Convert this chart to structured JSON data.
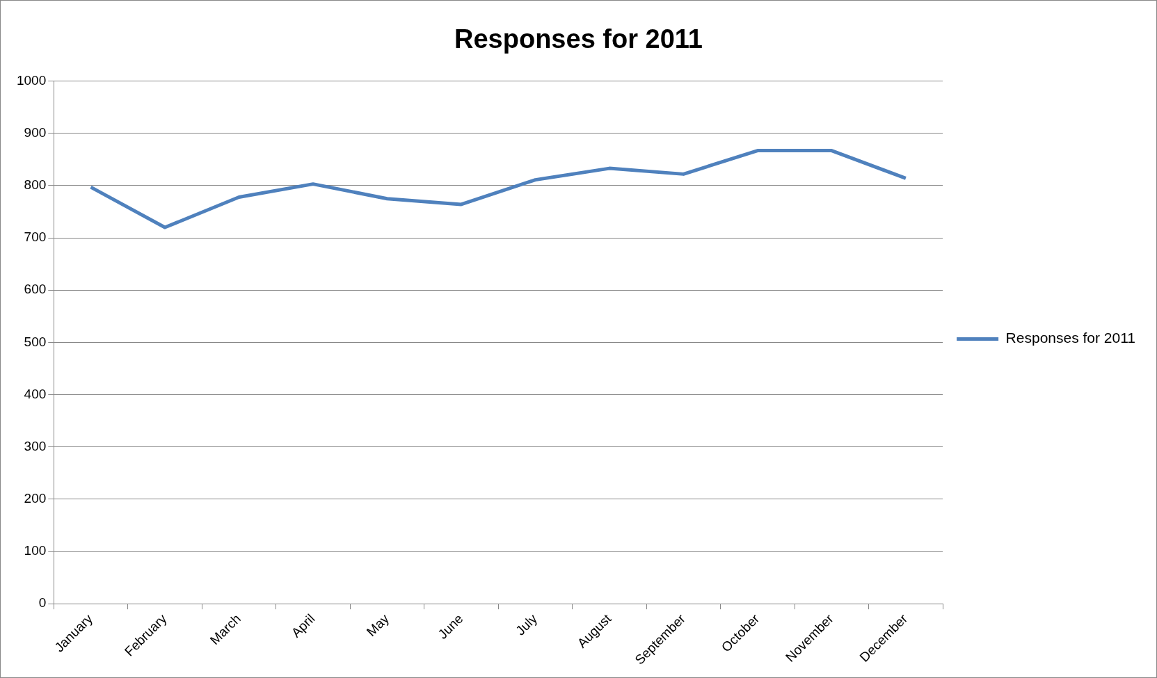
{
  "chart_data": {
    "type": "line",
    "title": "Responses for 2011",
    "categories": [
      "January",
      "February",
      "March",
      "April",
      "May",
      "June",
      "July",
      "August",
      "September",
      "October",
      "November",
      "December"
    ],
    "series": [
      {
        "name": "Responses for 2011",
        "color": "#4f81bd",
        "values": [
          797,
          720,
          778,
          803,
          775,
          764,
          811,
          833,
          822,
          867,
          867,
          814
        ]
      }
    ],
    "ylim": [
      0,
      1000
    ],
    "yticks": [
      0,
      100,
      200,
      300,
      400,
      500,
      600,
      700,
      800,
      900,
      1000
    ],
    "grid": "y",
    "legend": "right",
    "marker": "none",
    "line_style": "solid"
  }
}
